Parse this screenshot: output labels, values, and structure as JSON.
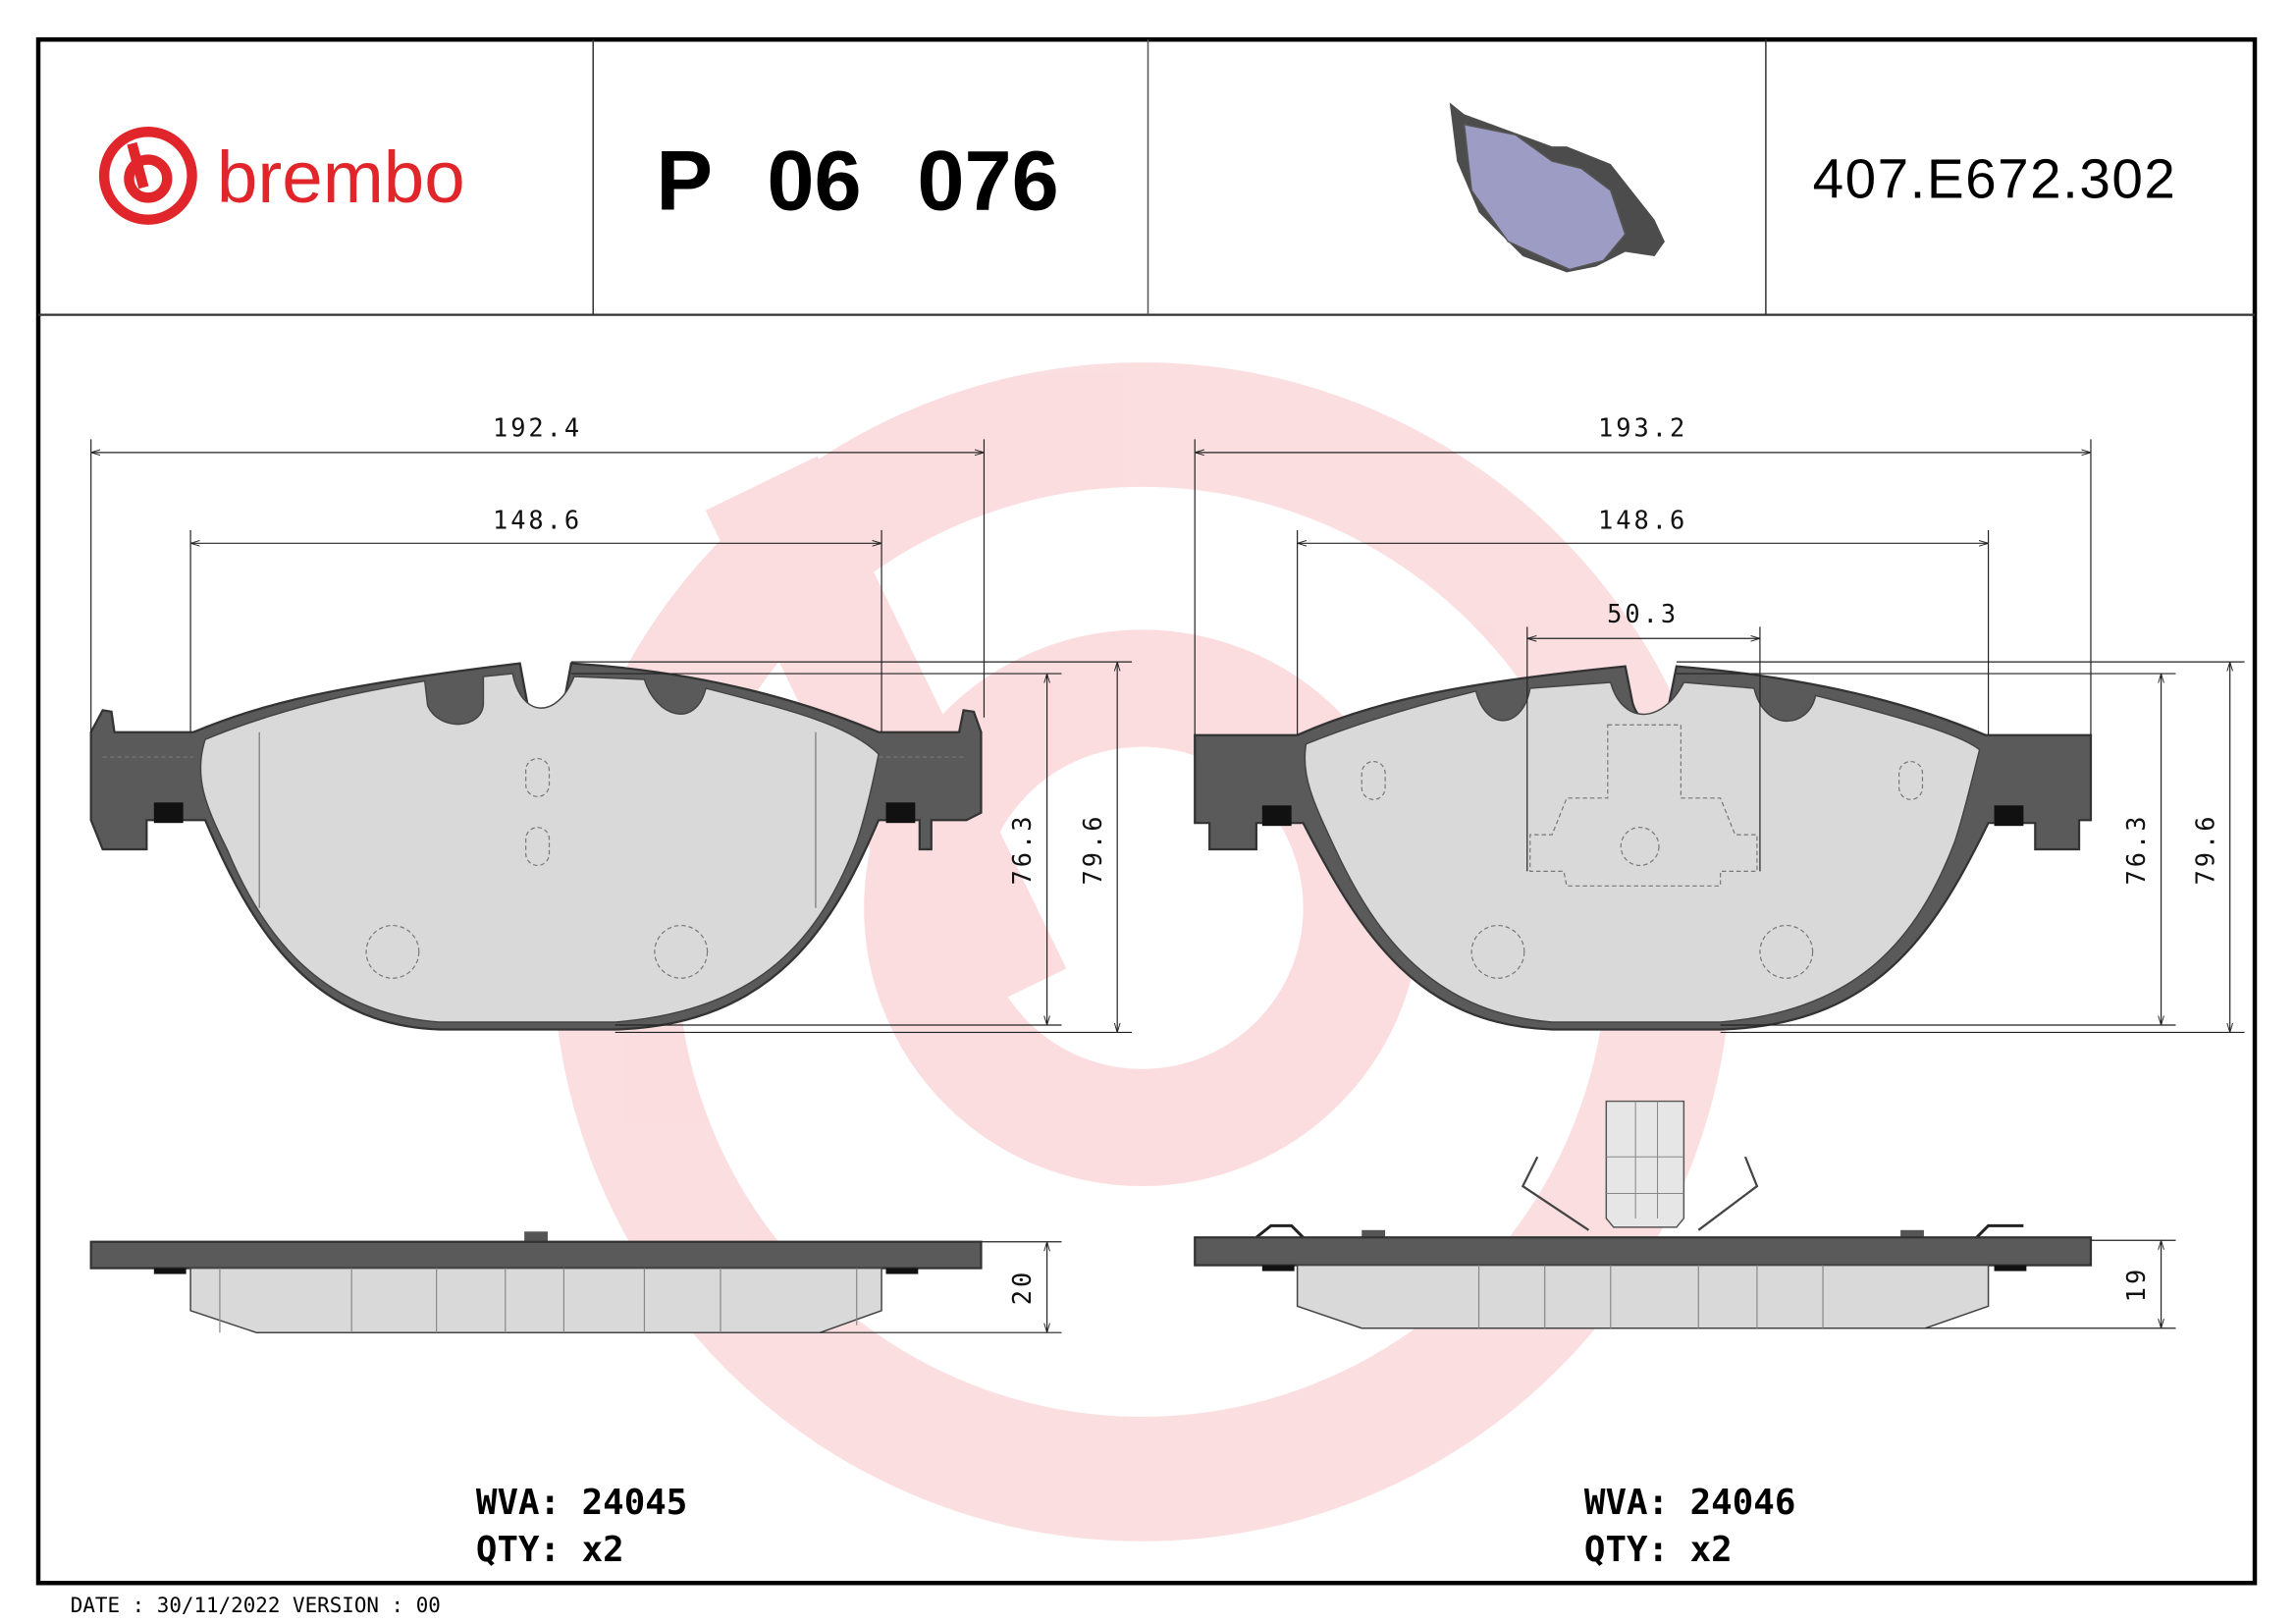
{
  "header": {
    "brand": "brembo",
    "product_code": "P 06 076",
    "reference": "407.E672.302"
  },
  "left_pad": {
    "dims": {
      "overall_width": "192.4",
      "friction_width": "148.6",
      "height_inner": "76.3",
      "height_outer": "79.6",
      "thickness": "20"
    },
    "wva": "WVA: 24045",
    "qty": "QTY: x2"
  },
  "right_pad": {
    "dims": {
      "overall_width": "193.2",
      "friction_width": "148.6",
      "sensor_width": "50.3",
      "height_inner": "76.3",
      "height_outer": "79.6",
      "thickness": "19"
    },
    "wva": "WVA: 24046",
    "qty": "QTY: x2"
  },
  "footer": {
    "date_version": "DATE : 30/11/2022 VERSION : 00"
  },
  "colors": {
    "brand_red": "#e0262b",
    "pad_preview": "#9c9cc4",
    "backing_plate": "#5a5a5a",
    "friction": "#d9d9d9"
  }
}
